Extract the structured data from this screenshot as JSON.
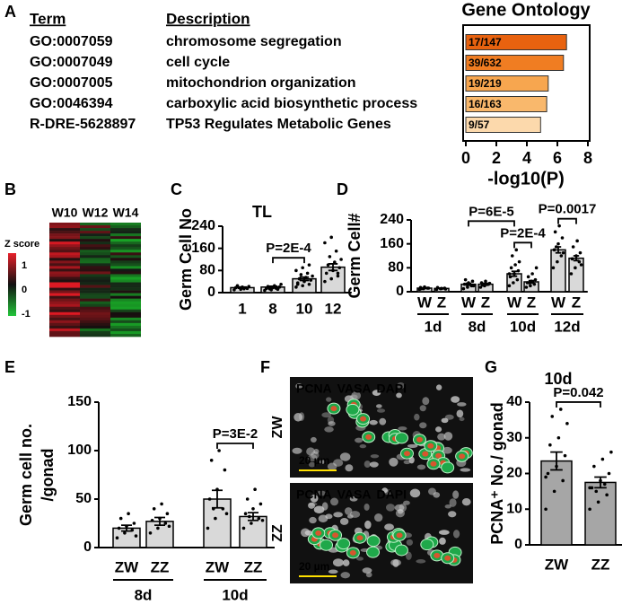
{
  "panel_labels": [
    "A",
    "B",
    "C",
    "D",
    "E",
    "F",
    "G"
  ],
  "heatmap": {
    "columns": [
      "W10",
      "W12",
      "W14"
    ],
    "legend_title": "Z score",
    "legend_ticks": [
      1,
      0,
      -1
    ]
  },
  "images": {
    "rows": [
      "ZW",
      "ZZ"
    ],
    "stains": [
      {
        "text": "PCNA",
        "color": "#ff2a2a"
      },
      {
        "text": "VASA",
        "color": "#1fc45a"
      },
      {
        "text": "DAPI",
        "color": "#ffffff"
      }
    ],
    "scale_bar": "20 µm"
  },
  "chart_data": [
    {
      "type": "hbar",
      "title": "Gene Ontology",
      "xlabel": "-log10(P)",
      "category_header": "Term",
      "description_header": "Description",
      "categories": [
        "GO:0007059",
        "GO:0007049",
        "GO:0007005",
        "GO:0046394",
        "R-DRE-5628897"
      ],
      "descriptions": [
        "chromosome segregation",
        "cell cycle",
        "mitochondrion organization",
        "carboxylic acid biosynthetic process",
        "TP53 Regulates Metabolic Genes"
      ],
      "values": [
        6.6,
        6.4,
        5.4,
        5.3,
        4.9
      ],
      "value_labels": [
        "17/147",
        "39/632",
        "19/219",
        "16/163",
        "9/57"
      ],
      "colors": [
        "#e8620f",
        "#f07d22",
        "#f7a64f",
        "#f9b86c",
        "#fcd9ac"
      ],
      "xlim": [
        0,
        8
      ],
      "xticks": [
        0,
        2,
        4,
        6,
        8
      ]
    },
    {
      "type": "bar",
      "title": "TL",
      "ylabel": [
        "Germ Cell No"
      ],
      "categories": [
        "1",
        "8",
        "10",
        "12"
      ],
      "values": [
        18,
        20,
        50,
        92
      ],
      "errors": [
        2,
        3,
        6,
        12
      ],
      "points": [
        [
          10,
          12,
          15,
          18,
          20,
          22,
          25,
          14
        ],
        [
          8,
          10,
          12,
          15,
          18,
          20,
          22,
          25,
          30,
          14,
          16
        ],
        [
          20,
          25,
          30,
          35,
          40,
          45,
          50,
          55,
          60,
          65,
          70,
          80,
          90,
          100,
          30
        ],
        [
          40,
          50,
          60,
          70,
          80,
          90,
          100,
          110,
          120,
          130,
          150,
          180,
          200,
          70
        ]
      ],
      "color": "#d9d9d9",
      "ylim": [
        0,
        240
      ],
      "yticks": [
        0,
        80,
        160,
        240
      ],
      "annotations": [
        {
          "text": "P=2E-4",
          "between": [
            1,
            2
          ]
        }
      ]
    },
    {
      "type": "bar",
      "ylabel": [
        "Germ Cell#"
      ],
      "categories": [
        "W",
        "Z",
        "W",
        "Z",
        "W",
        "Z",
        "W",
        "Z"
      ],
      "groups": [
        "1d",
        "8d",
        "10d",
        "12d"
      ],
      "values": [
        12,
        11,
        25,
        25,
        60,
        33,
        140,
        112
      ],
      "errors": [
        1,
        1,
        3,
        3,
        8,
        4,
        10,
        8
      ],
      "points": [
        [
          8,
          10,
          12,
          14,
          16,
          12,
          10
        ],
        [
          8,
          10,
          12,
          14,
          11,
          9
        ],
        [
          10,
          15,
          20,
          25,
          30,
          35,
          40,
          25,
          20
        ],
        [
          15,
          20,
          25,
          30,
          35,
          28,
          22
        ],
        [
          20,
          30,
          40,
          50,
          60,
          70,
          80,
          90,
          100,
          120,
          140,
          60
        ],
        [
          15,
          20,
          25,
          30,
          35,
          40,
          50,
          60,
          80,
          30
        ],
        [
          80,
          100,
          120,
          140,
          160,
          180,
          200,
          220,
          130,
          150
        ],
        [
          60,
          80,
          100,
          110,
          120,
          130,
          150,
          170,
          90
        ]
      ],
      "color": "#d9d9d9",
      "ylim": [
        0,
        240
      ],
      "yticks": [
        0,
        80,
        160,
        240
      ],
      "annotations": [
        {
          "text": "P=2E-4",
          "between": [
            4,
            5
          ]
        },
        {
          "text": "P=0.0017",
          "between": [
            6,
            7
          ]
        },
        {
          "text": "P=6E-5",
          "between": [
            2,
            4
          ]
        }
      ]
    },
    {
      "type": "bar",
      "ylabel": [
        "Germ cell no.",
        "/gonad"
      ],
      "categories": [
        "ZW",
        "ZZ",
        "ZW",
        "ZZ"
      ],
      "groups": [
        "8d",
        "10d"
      ],
      "values": [
        20,
        27,
        50,
        32
      ],
      "errors": [
        3,
        4,
        9,
        4
      ],
      "points": [
        [
          10,
          15,
          18,
          20,
          22,
          25,
          30,
          35,
          12
        ],
        [
          15,
          20,
          25,
          28,
          30,
          35,
          40,
          45,
          22
        ],
        [
          20,
          30,
          40,
          50,
          60,
          80,
          90,
          100,
          35,
          40
        ],
        [
          20,
          25,
          30,
          35,
          40,
          45,
          50,
          60,
          28,
          32
        ]
      ],
      "color": "#d9d9d9",
      "ylim": [
        0,
        150
      ],
      "yticks": [
        0,
        50,
        100,
        150
      ],
      "annotations": [
        {
          "text": "P=3E-2",
          "between": [
            2,
            3
          ]
        }
      ]
    },
    {
      "type": "bar",
      "title": "10d",
      "ylabel": [
        "PCNA⁺ No./ gonad"
      ],
      "categories": [
        "ZW",
        "ZZ"
      ],
      "values": [
        23.5,
        17.5
      ],
      "errors": [
        2.5,
        1.5
      ],
      "points": [
        [
          10,
          15,
          18,
          20,
          22,
          25,
          28,
          30,
          34,
          36,
          38,
          19
        ],
        [
          10,
          12,
          14,
          16,
          18,
          20,
          22,
          24,
          26,
          15,
          17,
          16
        ]
      ],
      "color": "#a6a6a6",
      "ylim": [
        0,
        40
      ],
      "yticks": [
        0,
        10,
        20,
        30,
        40
      ],
      "annotations": [
        {
          "text": "P=0.042",
          "between": [
            0,
            1
          ]
        }
      ]
    }
  ]
}
